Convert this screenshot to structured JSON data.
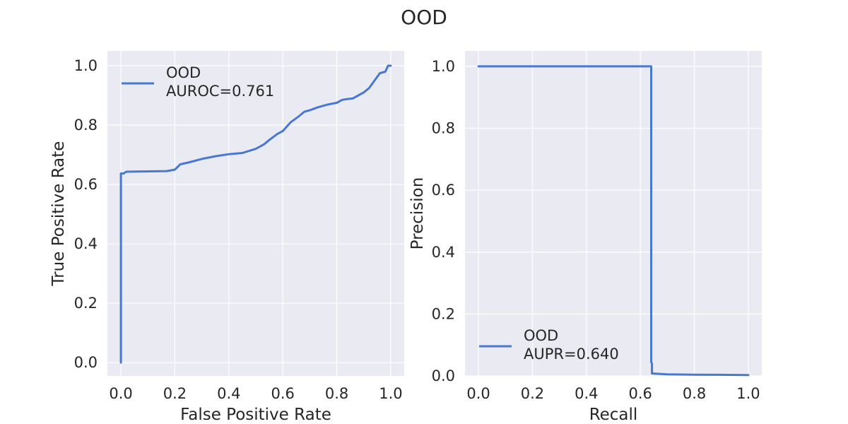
{
  "figure": {
    "title": "OOD",
    "line_color": "#4878d0",
    "panel_bg": "#eaeaf2",
    "grid_color": "#ffffff"
  },
  "chart_data": [
    {
      "type": "line",
      "xlabel": "False Positive Rate",
      "ylabel": "True Positive Rate",
      "xlim": [
        -0.05,
        1.05
      ],
      "ylim": [
        -0.045,
        1.05
      ],
      "xticks": [
        "0.0",
        "0.2",
        "0.4",
        "0.6",
        "0.8",
        "1.0"
      ],
      "yticks": [
        "0.0",
        "0.2",
        "0.4",
        "0.6",
        "0.8",
        "1.0"
      ],
      "grid": true,
      "legend": {
        "placement": "upper-left",
        "lines": [
          "OOD",
          "AUROC=0.761"
        ]
      },
      "series": [
        {
          "name": "OOD AUROC=0.761",
          "x": [
            0.0,
            0.0,
            0.01,
            0.02,
            0.17,
            0.2,
            0.22,
            0.25,
            0.3,
            0.35,
            0.4,
            0.45,
            0.5,
            0.53,
            0.55,
            0.58,
            0.6,
            0.63,
            0.66,
            0.68,
            0.7,
            0.73,
            0.75,
            0.77,
            0.8,
            0.82,
            0.84,
            0.86,
            0.88,
            0.9,
            0.92,
            0.94,
            0.96,
            0.98,
            0.99,
            1.0
          ],
          "y": [
            0.0,
            0.637,
            0.637,
            0.643,
            0.645,
            0.65,
            0.668,
            0.674,
            0.686,
            0.695,
            0.702,
            0.706,
            0.72,
            0.735,
            0.75,
            0.77,
            0.78,
            0.81,
            0.83,
            0.845,
            0.85,
            0.86,
            0.865,
            0.87,
            0.875,
            0.885,
            0.888,
            0.89,
            0.9,
            0.91,
            0.925,
            0.95,
            0.975,
            0.98,
            1.0,
            1.0
          ]
        }
      ]
    },
    {
      "type": "line",
      "xlabel": "Recall",
      "ylabel": "Precision",
      "xlim": [
        -0.05,
        1.05
      ],
      "ylim": [
        0.0,
        1.05
      ],
      "xticks": [
        "0.0",
        "0.2",
        "0.4",
        "0.6",
        "0.8",
        "1.0"
      ],
      "yticks": [
        "0.0",
        "0.2",
        "0.4",
        "0.6",
        "0.8",
        "1.0"
      ],
      "grid": true,
      "legend": {
        "placement": "lower-left",
        "lines": [
          "OOD",
          "AUPR=0.640"
        ]
      },
      "series": [
        {
          "name": "OOD AUPR=0.640",
          "x": [
            0.0,
            0.64,
            0.64,
            0.643,
            0.643,
            0.7,
            0.8,
            1.0
          ],
          "y": [
            1.0,
            1.0,
            0.045,
            0.04,
            0.008,
            0.005,
            0.004,
            0.003
          ]
        }
      ]
    }
  ]
}
